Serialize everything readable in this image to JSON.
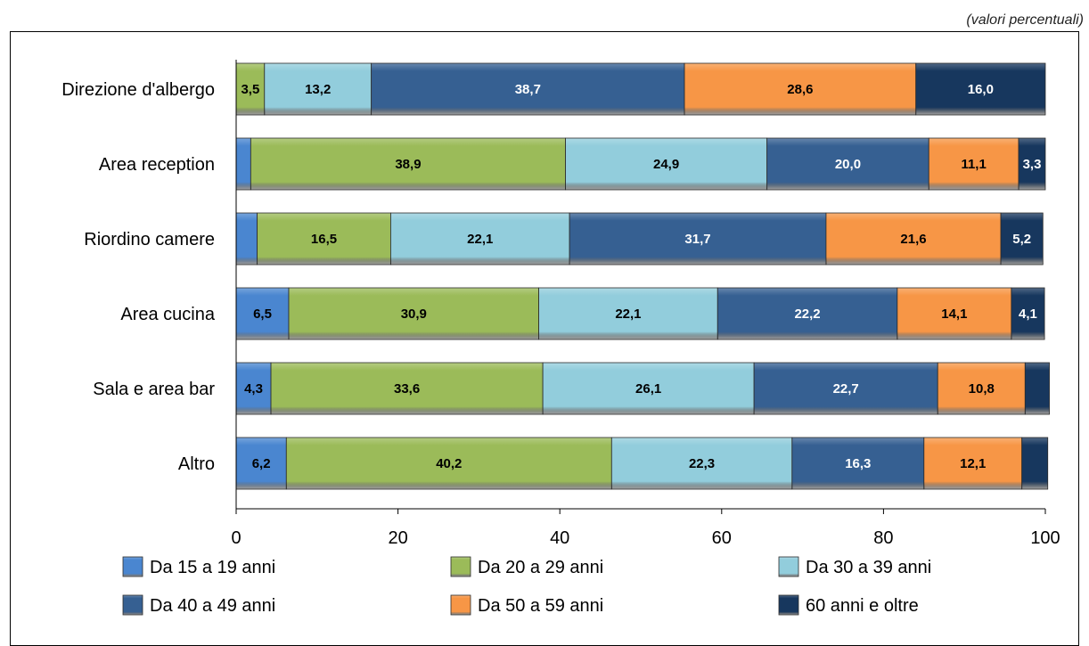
{
  "header": {
    "caption_fragment": "",
    "units_note": "(valori percentuali)"
  },
  "chart_data": {
    "type": "bar",
    "orientation": "horizontal",
    "stacked": true,
    "title": "",
    "xlabel": "",
    "ylabel": "",
    "xlim": [
      0,
      100
    ],
    "xticks": [
      0,
      20,
      40,
      60,
      80,
      100
    ],
    "grid": false,
    "legend_position": "bottom",
    "categories": [
      "Direzione d'albergo",
      "Area reception",
      "Riordino camere",
      "Area cucina",
      "Sala e area bar",
      "Altro"
    ],
    "series": [
      {
        "name": "Da 15 a 19 anni",
        "color": "#4a86d0",
        "label_color": "#000000",
        "values": [
          0,
          1.8,
          2.6,
          6.5,
          4.3,
          6.2
        ],
        "labels": [
          "",
          "",
          "",
          "6,5",
          "4,3",
          "6,2"
        ]
      },
      {
        "name": "Da 20 a 29 anni",
        "color": "#9bbb59",
        "label_color": "#000000",
        "values": [
          3.5,
          38.9,
          16.5,
          30.9,
          33.6,
          40.2
        ],
        "labels": [
          "3,5",
          "38,9",
          "16,5",
          "30,9",
          "33,6",
          "40,2"
        ]
      },
      {
        "name": "Da 30 a 39 anni",
        "color": "#92cddc",
        "label_color": "#000000",
        "values": [
          13.2,
          24.9,
          22.1,
          22.1,
          26.1,
          22.3
        ],
        "labels": [
          "13,2",
          "24,9",
          "22,1",
          "22,1",
          "26,1",
          "22,3"
        ]
      },
      {
        "name": "Da 40 a 49 anni",
        "color": "#366092",
        "label_color": "#ffffff",
        "values": [
          38.7,
          20.0,
          31.7,
          22.2,
          22.7,
          16.3
        ],
        "labels": [
          "38,7",
          "20,0",
          "31,7",
          "22,2",
          "22,7",
          "16,3"
        ]
      },
      {
        "name": "Da 50 a 59 anni",
        "color": "#f79646",
        "label_color": "#000000",
        "values": [
          28.6,
          11.1,
          21.6,
          14.1,
          10.8,
          12.1
        ],
        "labels": [
          "28,6",
          "11,1",
          "21,6",
          "14,1",
          "10,8",
          "12,1"
        ]
      },
      {
        "name": "60 anni e oltre",
        "color": "#17375e",
        "label_color": "#ffffff",
        "values": [
          16.0,
          3.3,
          5.2,
          4.1,
          3.0,
          3.2
        ],
        "labels": [
          "16,0",
          "3,3",
          "5,2",
          "4,1",
          "",
          ""
        ]
      }
    ]
  }
}
